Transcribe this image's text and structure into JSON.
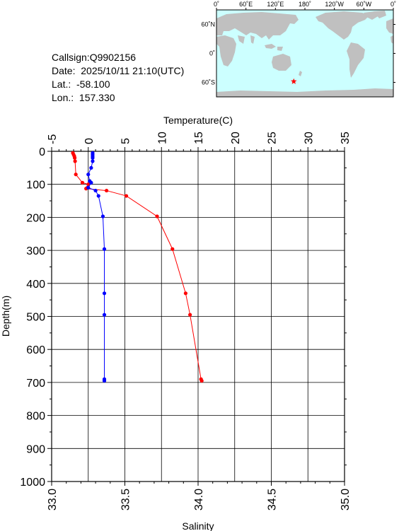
{
  "station": {
    "callsign_text": "Callsign:Q9902156",
    "date_text": "Date:  2025/10/11 21:10(UTC)",
    "lat_text": "Lat.:  -58.100",
    "lon_text": "Lon.:  157.330"
  },
  "map": {
    "top_labels": [
      "0˚",
      "60˚E",
      "120˚E",
      "180˚",
      "120˚W",
      "60˚W",
      "0˚"
    ],
    "right_labels": [
      "60˚N",
      "0˚",
      "60˚S"
    ],
    "ocean_color": "#ccffff",
    "land_color": "#c0c0c0",
    "marker": {
      "symbol": "star",
      "color": "#ff0000",
      "lat": -58.1,
      "lon": 157.33
    }
  },
  "chart_data": {
    "type": "line",
    "title": "",
    "top_axis": {
      "label": "Temperature(C)",
      "range": [
        -5,
        35
      ],
      "ticks": [
        "-5",
        "0",
        "5",
        "10",
        "15",
        "20",
        "25",
        "30",
        "35"
      ]
    },
    "bottom_axis": {
      "label": "Salinity",
      "range": [
        33.0,
        35.0
      ],
      "ticks": [
        "33.0",
        "33.5",
        "34.0",
        "34.5",
        "35.0"
      ]
    },
    "y_axis": {
      "label": "Depth(m)",
      "range": [
        0,
        1000
      ],
      "inverted": true,
      "ticks": [
        "0",
        "100",
        "200",
        "300",
        "400",
        "500",
        "600",
        "700",
        "800",
        "900",
        "1000"
      ]
    },
    "grid": true,
    "series": [
      {
        "color": "#ff0000",
        "axis": "top",
        "points": [
          {
            "x": -2.1,
            "y": 5
          },
          {
            "x": -2.0,
            "y": 10
          },
          {
            "x": -1.9,
            "y": 15
          },
          {
            "x": -1.85,
            "y": 20
          },
          {
            "x": -1.8,
            "y": 30
          },
          {
            "x": -1.7,
            "y": 70
          },
          {
            "x": -0.8,
            "y": 95
          },
          {
            "x": 0.0,
            "y": 100
          },
          {
            "x": -0.1,
            "y": 110
          },
          {
            "x": -0.3,
            "y": 113
          },
          {
            "x": 2.5,
            "y": 119
          },
          {
            "x": 5.2,
            "y": 135
          },
          {
            "x": 9.4,
            "y": 197
          },
          {
            "x": 11.5,
            "y": 296
          },
          {
            "x": 13.3,
            "y": 430
          },
          {
            "x": 13.9,
            "y": 495
          },
          {
            "x": 15.4,
            "y": 690
          },
          {
            "x": 15.5,
            "y": 695
          }
        ]
      },
      {
        "color": "#0000ff",
        "axis": "bottom",
        "points": [
          {
            "x": 33.28,
            "y": 5
          },
          {
            "x": 33.28,
            "y": 10
          },
          {
            "x": 33.28,
            "y": 15
          },
          {
            "x": 33.28,
            "y": 20
          },
          {
            "x": 33.28,
            "y": 30
          },
          {
            "x": 33.27,
            "y": 50
          },
          {
            "x": 33.25,
            "y": 70
          },
          {
            "x": 33.26,
            "y": 90
          },
          {
            "x": 33.27,
            "y": 95
          },
          {
            "x": 33.25,
            "y": 110
          },
          {
            "x": 33.3,
            "y": 119
          },
          {
            "x": 33.32,
            "y": 135
          },
          {
            "x": 33.35,
            "y": 197
          },
          {
            "x": 33.36,
            "y": 296
          },
          {
            "x": 33.36,
            "y": 430
          },
          {
            "x": 33.36,
            "y": 495
          },
          {
            "x": 33.36,
            "y": 690
          },
          {
            "x": 33.36,
            "y": 695
          }
        ]
      }
    ]
  }
}
